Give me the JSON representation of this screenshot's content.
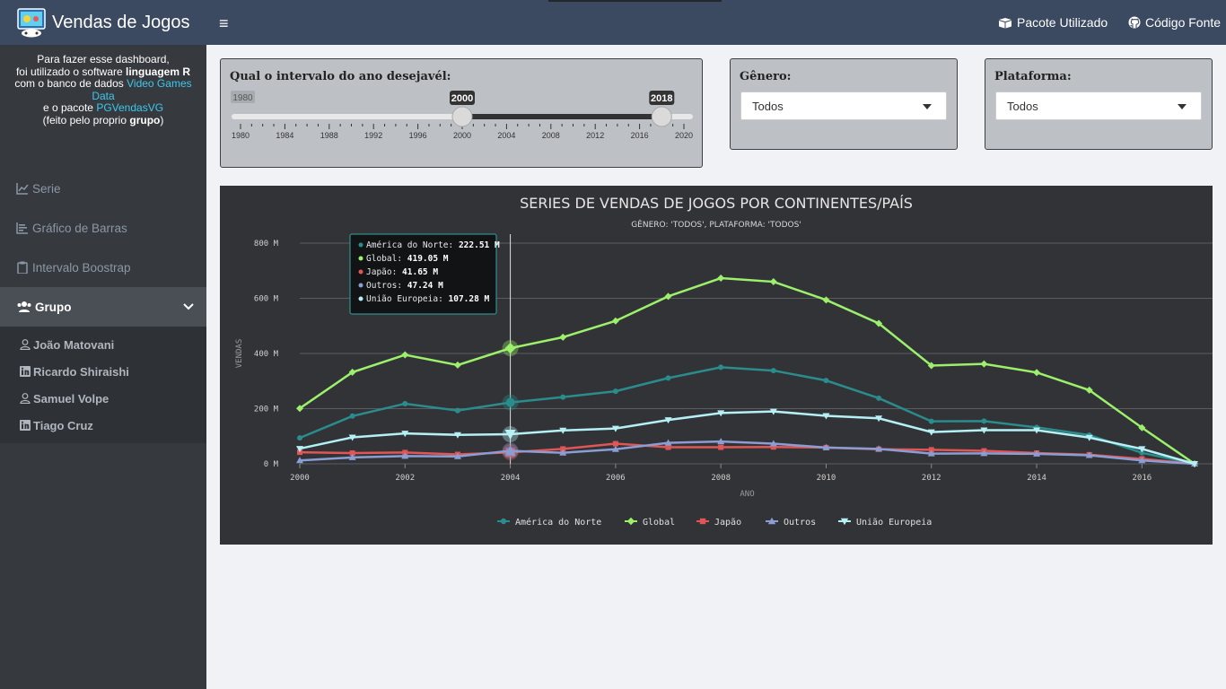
{
  "sidebar": {
    "title": "Vendas de Jogos",
    "intro": {
      "l1": "Para fazer esse dashboard,",
      "l2a": "foi utilizado o software ",
      "l2b": "linguagem R",
      "l3a": "com o banco de dados ",
      "l3b": "Video Games Data",
      "l4a": "e o pacote ",
      "l4b": "PGVendasVG",
      "l5a": "(feito pelo proprio ",
      "l5b": "grupo",
      "l5c": ")"
    },
    "menu": [
      {
        "label": "Serie",
        "icon": "line-chart-icon"
      },
      {
        "label": "Gráfico de Barras",
        "icon": "bar-chart-icon"
      },
      {
        "label": "Intervalo Boostrap",
        "icon": "clipboard-icon"
      }
    ],
    "group": {
      "label": "Grupo",
      "icon": "users-icon"
    },
    "members": [
      {
        "label": "João Matovani",
        "icon": "user-icon"
      },
      {
        "label": "Ricardo Shiraishi",
        "icon": "linkedin-icon"
      },
      {
        "label": "Samuel Volpe",
        "icon": "user-icon"
      },
      {
        "label": "Tiago Cruz",
        "icon": "linkedin-icon"
      }
    ]
  },
  "topbar": {
    "menu_icon": "≡",
    "package_link": "Pacote Utilizado",
    "source_link": "Código Fonte"
  },
  "slider": {
    "label": "Qual o intervalo do ano desejavél:",
    "min": 1980,
    "max": 2020,
    "from": 2000,
    "to": 2018,
    "min_label": "1980",
    "from_label": "2000",
    "to_label": "2018",
    "ticks": [
      "1980",
      "1984",
      "1988",
      "1992",
      "1996",
      "2000",
      "2004",
      "2008",
      "2012",
      "2016",
      "2020"
    ]
  },
  "genre": {
    "label": "Gênero:",
    "value": "Todos"
  },
  "platform": {
    "label": "Plataforma:",
    "value": "Todos"
  },
  "chart_data": {
    "type": "line",
    "title": "SERIES DE VENDAS DE JOGOS POR CONTINENTES/PAÍS",
    "subtitle": "GÊNERO: 'TODOS', PLATAFORMA: 'TODOS'",
    "xlabel": "ANO",
    "ylabel": "VENDAS",
    "x": [
      2000,
      2001,
      2002,
      2003,
      2004,
      2005,
      2006,
      2007,
      2008,
      2009,
      2010,
      2011,
      2012,
      2013,
      2014,
      2015,
      2016,
      2017
    ],
    "xlim": [
      2000,
      2017
    ],
    "ylim": [
      0,
      800
    ],
    "x_ticks": [
      "2000",
      "2002",
      "2004",
      "2006",
      "2008",
      "2010",
      "2012",
      "2014",
      "2016"
    ],
    "y_ticks": [
      "0 M",
      "200 M",
      "400 M",
      "600 M",
      "800 M"
    ],
    "grid": true,
    "legend_position": "bottom",
    "series": [
      {
        "name": "América do Norte",
        "color": "#2a8c8c",
        "marker": "circle",
        "values": [
          94,
          173,
          218,
          193,
          222.51,
          242,
          263,
          311,
          350,
          338,
          302,
          238,
          154,
          155,
          132,
          104,
          40,
          0
        ]
      },
      {
        "name": "Global",
        "color": "#9cf06c",
        "marker": "diamond",
        "values": [
          201,
          332,
          395,
          358,
          419.05,
          459,
          518,
          607,
          673,
          660,
          594,
          509,
          356,
          362,
          331,
          267,
          131,
          0
        ]
      },
      {
        "name": "Japão",
        "color": "#e05656",
        "marker": "square",
        "values": [
          42,
          39,
          41,
          34,
          41.65,
          54,
          73,
          60,
          60,
          61,
          59,
          53,
          51,
          47,
          39,
          33,
          18,
          0
        ]
      },
      {
        "name": "Outros",
        "color": "#8b9ed4",
        "marker": "triangle-up",
        "values": [
          12,
          23,
          28,
          27,
          47.24,
          40,
          53,
          76,
          81,
          73,
          59,
          54,
          37,
          38,
          36,
          31,
          12,
          0
        ]
      },
      {
        "name": "União Europeia",
        "color": "#b5f0f5",
        "marker": "triangle-down",
        "values": [
          55,
          96,
          110,
          105,
          107.28,
          121,
          128,
          159,
          184,
          190,
          174,
          165,
          115,
          122,
          122,
          95,
          54,
          0
        ]
      }
    ],
    "tooltip": {
      "x": 2004,
      "rows": [
        {
          "name": "América do Norte",
          "value": "222.51 M",
          "color": "#2a8c8c"
        },
        {
          "name": "Global",
          "value": "419.05 M",
          "color": "#9cf06c"
        },
        {
          "name": "Japão",
          "value": "41.65 M",
          "color": "#e05656"
        },
        {
          "name": "Outros",
          "value": "47.24 M",
          "color": "#8b9ed4"
        },
        {
          "name": "União Europeia",
          "value": "107.28 M",
          "color": "#b5f0f5"
        }
      ]
    }
  }
}
